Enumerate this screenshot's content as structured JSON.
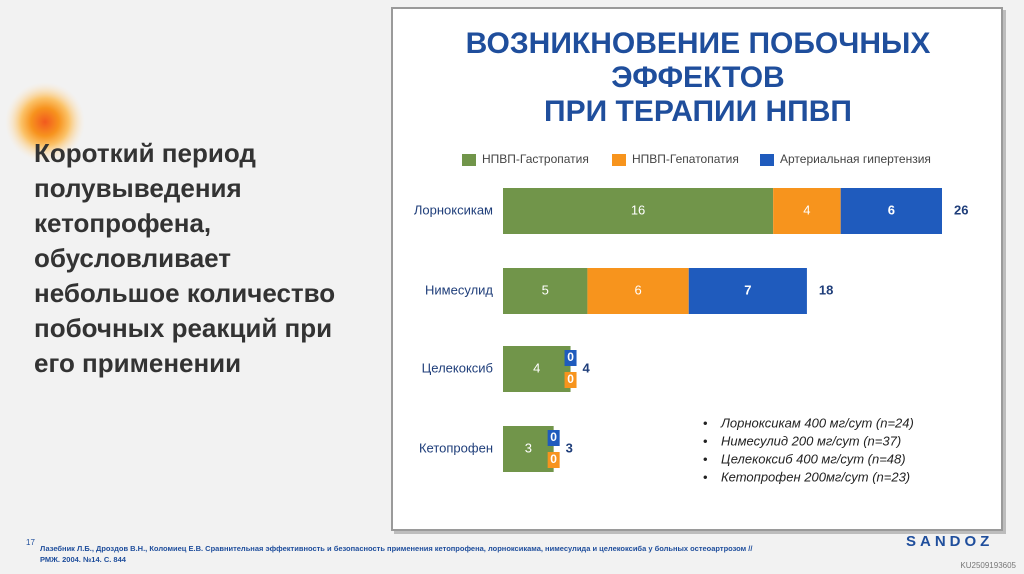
{
  "side_text": [
    "Короткий период",
    "полувыведения",
    "кетопрофена,",
    "обусловливает",
    "небольшое количество",
    "побочных реакций при",
    "его применении"
  ],
  "chart_data": {
    "type": "bar",
    "orientation": "horizontal",
    "stacked": true,
    "title": [
      "ВОЗНИКНОВЕНИЕ ПОБОЧНЫХ",
      "ЭФФЕКТОВ",
      "ПРИ ТЕРАПИИ НПВП"
    ],
    "categories": [
      "Лорноксикам",
      "Нимесулид",
      "Целекоксиб",
      "Кетопрофен"
    ],
    "series": [
      {
        "name": "НПВП-Гастропатия",
        "color": "#71954a",
        "values": [
          16,
          5,
          4,
          3
        ]
      },
      {
        "name": "НПВП-Гепатопатия",
        "color": "#f7941d",
        "values": [
          4,
          6,
          0,
          0
        ]
      },
      {
        "name": "Артериальная гипертензия",
        "color": "#1f5bbd",
        "values": [
          6,
          7,
          0,
          0
        ]
      }
    ],
    "totals": [
      26,
      18,
      4,
      3
    ],
    "notes": [
      "Лорноксикам 400 мг/сут (n=24)",
      "Нимесулид 200 мг/сут (n=37)",
      "Целекоксиб 400 мг/сут (n=48)",
      "Кетопрофен 200мг/сут (n=23)"
    ]
  },
  "footer": {
    "page_number": "17",
    "citation": [
      "Лазебник Л.Б., Дроздов В.Н., Коломиец Е.В. Сравнительная эффективность и безопасность применения кетопрофена, лорноксикама, нимесулида и целекоксиба у больных остеоартрозом //",
      "РМЖ. 2004. №14. С. 844"
    ],
    "brand": "SANDOZ",
    "code": "KU2509193605"
  }
}
